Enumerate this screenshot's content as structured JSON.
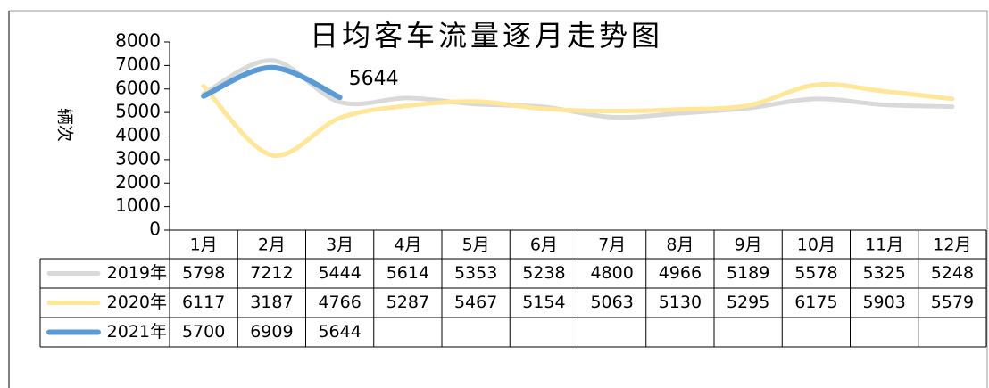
{
  "chart_data": {
    "type": "line",
    "title": "日均客车流量逐月走势图",
    "y_label": "辆次",
    "categories": [
      "1月",
      "2月",
      "3月",
      "4月",
      "5月",
      "6月",
      "7月",
      "8月",
      "9月",
      "10月",
      "11月",
      "12月"
    ],
    "series": [
      {
        "name": "2019年",
        "color": "#d9d9d9",
        "values": [
          5798,
          7212,
          5444,
          5614,
          5353,
          5238,
          4800,
          4966,
          5189,
          5578,
          5325,
          5248
        ]
      },
      {
        "name": "2020年",
        "color": "#ffe699",
        "values": [
          6117,
          3187,
          4766,
          5287,
          5467,
          5154,
          5063,
          5130,
          5295,
          6175,
          5903,
          5579
        ]
      },
      {
        "name": "2021年",
        "color": "#5b9bd5",
        "values": [
          5700,
          6909,
          5644,
          null,
          null,
          null,
          null,
          null,
          null,
          null,
          null,
          null
        ]
      }
    ],
    "ylim": [
      0,
      8000
    ],
    "yticks": [
      0,
      1000,
      2000,
      3000,
      4000,
      5000,
      6000,
      7000,
      8000
    ]
  }
}
